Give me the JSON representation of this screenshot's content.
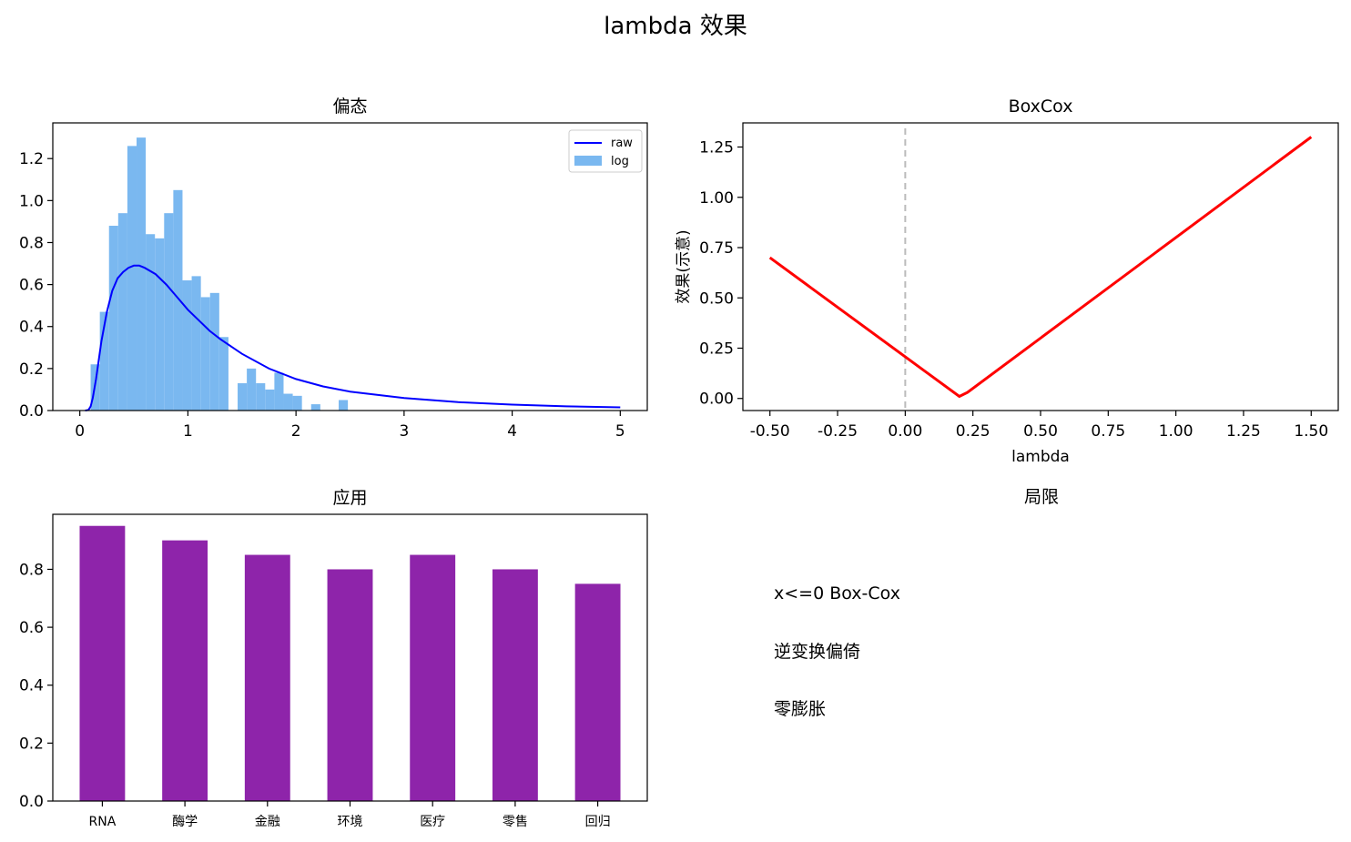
{
  "figure": {
    "suptitle": "lambda 效果"
  },
  "chart_data": [
    {
      "type": "histogram",
      "title": "偏态",
      "xlabel": "",
      "ylabel": "",
      "xlim": [
        -0.25,
        5.25
      ],
      "ylim": [
        0,
        1.37
      ],
      "xticks": [
        0,
        1,
        2,
        3,
        4,
        5
      ],
      "yticks": [
        0.0,
        0.2,
        0.4,
        0.6,
        0.8,
        1.0,
        1.2
      ],
      "legend": {
        "placement": "upper right",
        "entries": [
          "raw",
          "log"
        ]
      },
      "series": [
        {
          "name": "raw",
          "kind": "line",
          "color": "#0000ff",
          "description": "lognormal density curve peaking at about 0.69 near x = 0.53",
          "x": [
            0.05,
            0.08,
            0.1,
            0.12,
            0.15,
            0.2,
            0.25,
            0.3,
            0.35,
            0.4,
            0.45,
            0.5,
            0.55,
            0.6,
            0.7,
            0.8,
            0.9,
            1.0,
            1.1,
            1.2,
            1.3,
            1.5,
            1.75,
            2.0,
            2.25,
            2.5,
            3.0,
            3.5,
            4.0,
            4.5,
            5.0
          ],
          "y": [
            0.0,
            0.003,
            0.02,
            0.06,
            0.15,
            0.33,
            0.47,
            0.57,
            0.63,
            0.66,
            0.68,
            0.69,
            0.69,
            0.68,
            0.65,
            0.6,
            0.54,
            0.48,
            0.43,
            0.38,
            0.34,
            0.27,
            0.2,
            0.15,
            0.115,
            0.09,
            0.06,
            0.04,
            0.028,
            0.02,
            0.015
          ]
        },
        {
          "name": "log",
          "kind": "bars",
          "color": "#7ab8f0",
          "bin_edges": [
            0.1,
            0.185,
            0.27,
            0.355,
            0.44,
            0.525,
            0.61,
            0.695,
            0.78,
            0.865,
            0.95,
            1.035,
            1.12,
            1.205,
            1.29,
            1.375,
            1.46,
            1.545,
            1.63,
            1.715,
            1.8,
            1.885,
            1.97,
            2.055,
            2.14,
            2.225,
            2.31,
            2.395,
            2.48,
            2.565
          ],
          "heights": [
            0.22,
            0.47,
            0.88,
            0.94,
            1.26,
            1.3,
            0.84,
            0.82,
            0.94,
            1.05,
            0.62,
            0.64,
            0.54,
            0.56,
            0.35,
            0.0,
            0.13,
            0.2,
            0.13,
            0.1,
            0.18,
            0.08,
            0.07,
            0.0,
            0.03,
            0.0,
            0.0,
            0.05,
            0.0
          ]
        }
      ]
    },
    {
      "type": "line",
      "title": "BoxCox",
      "xlabel": "lambda",
      "ylabel": "效果(示意)",
      "xlim": [
        -0.6,
        1.6
      ],
      "ylim": [
        -0.06,
        1.37
      ],
      "xticks": [
        -0.5,
        -0.25,
        0.0,
        0.25,
        0.5,
        0.75,
        1.0,
        1.25,
        1.5
      ],
      "xtick_labels": [
        "-0.50",
        "-0.25",
        "0.00",
        "0.25",
        "0.50",
        "0.75",
        "1.00",
        "1.25",
        "1.50"
      ],
      "yticks": [
        0.0,
        0.25,
        0.5,
        0.75,
        1.0,
        1.25
      ],
      "ytick_labels": [
        "0.00",
        "0.25",
        "0.50",
        "0.75",
        "1.00",
        "1.25"
      ],
      "reference_line": {
        "axis": "x",
        "value": 0.0,
        "style": "dashed",
        "color": "#bbbbbb"
      },
      "series": [
        {
          "color": "#ff0000",
          "x": [
            -0.5,
            0.2,
            0.23,
            1.5
          ],
          "y": [
            0.7,
            0.01,
            0.03,
            1.3
          ]
        }
      ]
    },
    {
      "type": "bar",
      "title": "应用",
      "categories": [
        "RNA",
        "酶学",
        "金融",
        "环境",
        "医疗",
        "零售",
        "回归"
      ],
      "values": [
        0.95,
        0.9,
        0.85,
        0.8,
        0.85,
        0.8,
        0.75
      ],
      "color": "#8e24aa",
      "ylim": [
        0,
        0.99
      ],
      "yticks": [
        0.0,
        0.2,
        0.4,
        0.6,
        0.8
      ],
      "xlabel": "",
      "ylabel": ""
    }
  ],
  "limits_panel": {
    "title": "局限",
    "lines": [
      "x<=0 Box-Cox",
      "逆变换偏倚",
      "零膨胀"
    ]
  }
}
